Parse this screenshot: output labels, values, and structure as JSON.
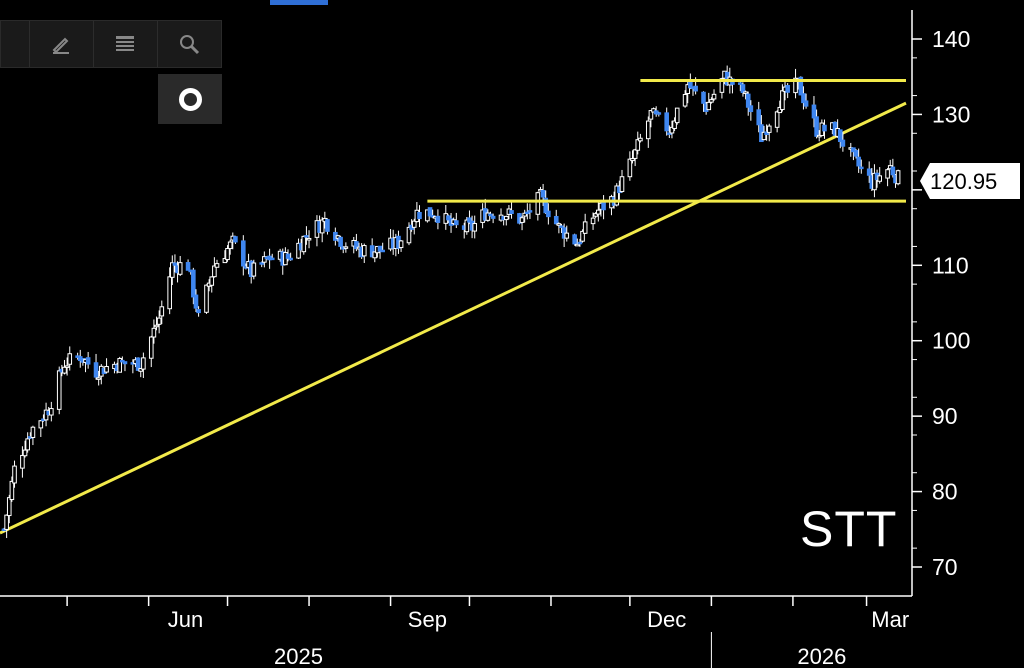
{
  "toolbar": {
    "buttons": [
      {
        "name": "collapse-tab",
        "icon": "panel-edge"
      },
      {
        "name": "draw",
        "icon": "pen-icon"
      },
      {
        "name": "list",
        "icon": "list-icon"
      },
      {
        "name": "zoom",
        "icon": "magnifier-icon"
      }
    ],
    "settings_icon": "ring-icon"
  },
  "chart_data": {
    "type": "candlestick",
    "ticker": "STT",
    "last_price": "120.95",
    "y_ticks": [
      70,
      80,
      90,
      100,
      110,
      120,
      130,
      140
    ],
    "y_tick_labels": [
      "70",
      "80",
      "90",
      "100",
      "110",
      "",
      "130",
      "140"
    ],
    "ylim": [
      67,
      143
    ],
    "x_month_labels": [
      "Jun",
      "Sep",
      "Dec",
      "Mar"
    ],
    "x_year_labels": [
      "2025",
      "2026"
    ],
    "x_range": [
      "2025-04-07",
      "2026-03-16"
    ],
    "colors": {
      "up": "#ffffff",
      "down": "#3f86f0",
      "trendline": "#f2ea4a",
      "axis": "#ffffff"
    },
    "price_path": [
      [
        "2025-04-07",
        75
      ],
      [
        "2025-04-11",
        83
      ],
      [
        "2025-04-17",
        88
      ],
      [
        "2025-04-24",
        91
      ],
      [
        "2025-04-30",
        97
      ],
      [
        "2025-05-06",
        98
      ],
      [
        "2025-05-12",
        96
      ],
      [
        "2025-05-20",
        97
      ],
      [
        "2025-05-29",
        97
      ],
      [
        "2025-06-05",
        103
      ],
      [
        "2025-06-10",
        110
      ],
      [
        "2025-06-16",
        110
      ],
      [
        "2025-06-20",
        103
      ],
      [
        "2025-06-26",
        110
      ],
      [
        "2025-07-03",
        113
      ],
      [
        "2025-07-10",
        109
      ],
      [
        "2025-07-17",
        111
      ],
      [
        "2025-07-24",
        111
      ],
      [
        "2025-07-31",
        114
      ],
      [
        "2025-08-07",
        116
      ],
      [
        "2025-08-14",
        113
      ],
      [
        "2025-08-21",
        112
      ],
      [
        "2025-08-28",
        112
      ],
      [
        "2025-09-04",
        113
      ],
      [
        "2025-09-11",
        117
      ],
      [
        "2025-09-18",
        117
      ],
      [
        "2025-09-25",
        115
      ],
      [
        "2025-10-02",
        115
      ],
      [
        "2025-10-07",
        117
      ],
      [
        "2025-10-14",
        117
      ],
      [
        "2025-10-21",
        116
      ],
      [
        "2025-10-28",
        119
      ],
      [
        "2025-11-04",
        115
      ],
      [
        "2025-11-11",
        113
      ],
      [
        "2025-11-18",
        117
      ],
      [
        "2025-11-25",
        119
      ],
      [
        "2025-12-02",
        124
      ],
      [
        "2025-12-09",
        130
      ],
      [
        "2025-12-16",
        128
      ],
      [
        "2025-12-23",
        134
      ],
      [
        "2025-12-30",
        131
      ],
      [
        "2026-01-06",
        135
      ],
      [
        "2026-01-13",
        133
      ],
      [
        "2026-01-20",
        127
      ],
      [
        "2026-01-27",
        132
      ],
      [
        "2026-02-03",
        134
      ],
      [
        "2026-02-10",
        128
      ],
      [
        "2026-02-17",
        128
      ],
      [
        "2026-02-24",
        124
      ],
      [
        "2026-03-03",
        121
      ],
      [
        "2026-03-10",
        123
      ],
      [
        "2026-03-14",
        121
      ]
    ],
    "annotations": [
      {
        "type": "trendline",
        "from": [
          "2025-04-07",
          74.5
        ],
        "to": [
          "2026-03-16",
          131.5
        ]
      },
      {
        "type": "hline",
        "value": 134.5,
        "from": "2025-12-05",
        "to": "2026-03-16"
      },
      {
        "type": "hline",
        "value": 118.5,
        "from": "2025-09-15",
        "to": "2026-03-16"
      }
    ]
  }
}
